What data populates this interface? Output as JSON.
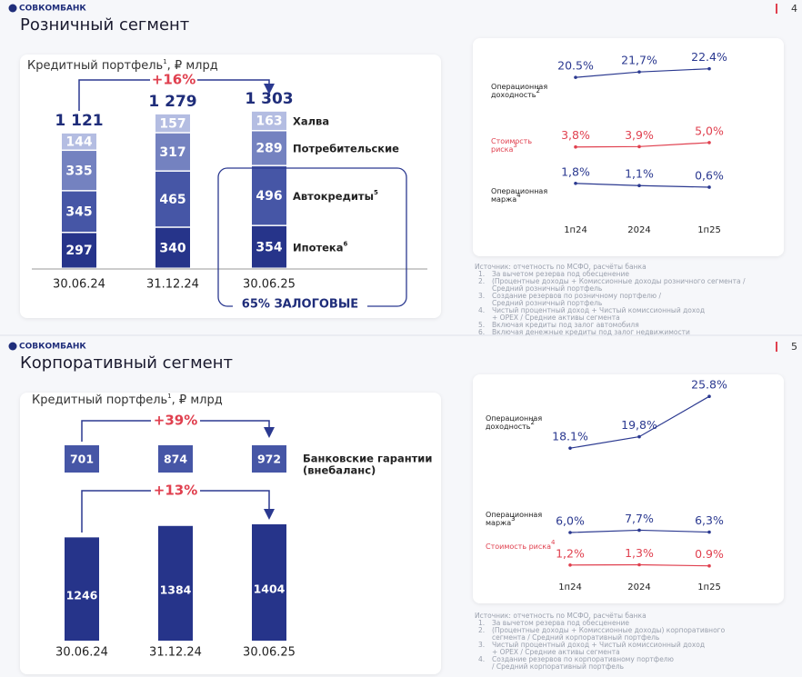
{
  "slides": [
    {
      "logo": "СОВКОМБАНК",
      "page": "4",
      "title": "Розничный сегмент",
      "portfolio": {
        "title": "Кредитный портфель",
        "title_sup": "1",
        "title_unit": ", ₽ млрд",
        "growth": "+16%",
        "categories": [
          "30.06.24",
          "31.12.24",
          "30.06.25"
        ],
        "totals": [
          "1 121",
          "1 279",
          "1 303"
        ],
        "series": [
          {
            "name": "Ипотека",
            "sup": "6",
            "color": "#26348a",
            "values": [
              297,
              340,
              354
            ]
          },
          {
            "name": "Автокредиты",
            "sup": "5",
            "color": "#4656a6",
            "values": [
              345,
              465,
              496
            ]
          },
          {
            "name": "Потребительские",
            "color": "#7482c0",
            "values": [
              335,
              317,
              289
            ]
          },
          {
            "name": "Халва",
            "color": "#b4bde2",
            "values": [
              144,
              157,
              163
            ]
          }
        ],
        "collateral": "65% ЗАЛОГОВЫЕ"
      },
      "metrics": {
        "periods": [
          "1п24",
          "2024",
          "1п25"
        ],
        "rows": [
          {
            "label": [
              "Операционная",
              "доходность"
            ],
            "sup": "2",
            "color": "#2b3990",
            "values": [
              20.5,
              21.7,
              22.4
            ],
            "value_labels": [
              "20.5%",
              "21,7%",
              "22.4%"
            ]
          },
          {
            "label": [
              "Стоимость",
              "риска"
            ],
            "sup": "3",
            "color": "#e0404f",
            "values": [
              3.8,
              3.9,
              5.0
            ],
            "value_labels": [
              "3,8%",
              "3,9%",
              "5,0%"
            ]
          },
          {
            "label": [
              "Операционная",
              "маржа"
            ],
            "sup": "4",
            "color": "#2b3990",
            "values": [
              1.8,
              1.1,
              0.6
            ],
            "value_labels": [
              "1,8%",
              "1,1%",
              "0,6%"
            ]
          }
        ]
      },
      "notes": {
        "source": "Источник: отчетность по МСФО, расчёты банка",
        "items": [
          {
            "n": "1.",
            "text": "За вычетом резерва под обесценение"
          },
          {
            "n": "2.",
            "text": "(Процентные доходы + Комиссионные доходы розничного сегмента /"
          },
          {
            "n": "",
            "text": "Средний розничный портфель"
          },
          {
            "n": "3.",
            "text": "Создание резервов по розничному портфелю /"
          },
          {
            "n": "",
            "text": "Средний розничный портфель"
          },
          {
            "n": "4.",
            "text": "Чистый процентный доход + Чистый комиссионный доход"
          },
          {
            "n": "",
            "text": "+ OPEX / Средние активы сегмента"
          },
          {
            "n": "5.",
            "text": "Включая кредиты под залог автомобиля"
          },
          {
            "n": "6.",
            "text": "Включая денежные кредиты под залог недвижимости"
          }
        ]
      }
    },
    {
      "logo": "СОВКОМБАНК",
      "page": "5",
      "title": "Корпоративный сегмент",
      "portfolio": {
        "title": "Кредитный портфель",
        "title_sup": "1",
        "title_unit": ", ₽ млрд",
        "categories": [
          "30.06.24",
          "31.12.24",
          "30.06.25"
        ],
        "guarantees": {
          "label": [
            "Банковские гарантии",
            "(внебаланс)"
          ],
          "growth": "+39%",
          "color": "#4656a6",
          "values": [
            701,
            874,
            972
          ]
        },
        "loans": {
          "growth": "+13%",
          "color": "#26348a",
          "values": [
            1246,
            1384,
            1404
          ]
        }
      },
      "metrics": {
        "periods": [
          "1п24",
          "2024",
          "1п25"
        ],
        "rows": [
          {
            "label": [
              "Операционная",
              "доходность"
            ],
            "sup": "2",
            "color": "#2b3990",
            "values": [
              18.1,
              19.8,
              25.8
            ],
            "value_labels": [
              "18.1%",
              "19,8%",
              "25.8%"
            ]
          },
          {
            "label": [
              "Операционная",
              "маржа"
            ],
            "sup": "3",
            "color": "#2b3990",
            "values": [
              6.0,
              7.7,
              6.3
            ],
            "value_labels": [
              "6,0%",
              "7,7%",
              "6,3%"
            ]
          },
          {
            "label": [
              "Стоимость риска"
            ],
            "sup": "4",
            "color": "#e0404f",
            "values": [
              1.2,
              1.3,
              0.9
            ],
            "value_labels": [
              "1,2%",
              "1,3%",
              "0.9%"
            ]
          }
        ]
      },
      "notes": {
        "source": "Источник: отчетность по МСФО, расчёты банка",
        "items": [
          {
            "n": "1.",
            "text": "За вычетом резерва под обесценение"
          },
          {
            "n": "2.",
            "text": "(Процентные доходы + Комиссионные доходы) корпоративного"
          },
          {
            "n": "",
            "text": "сегмента / Средний корпоративный портфель"
          },
          {
            "n": "3.",
            "text": "Чистый процентный доход + Чистый комиссионный доход"
          },
          {
            "n": "",
            "text": "+ OPEX / Средние активы сегмента"
          },
          {
            "n": "4.",
            "text": "Создание резервов по корпоративному портфелю"
          },
          {
            "n": "",
            "text": "/ Средний корпоративный портфель"
          }
        ]
      }
    }
  ]
}
